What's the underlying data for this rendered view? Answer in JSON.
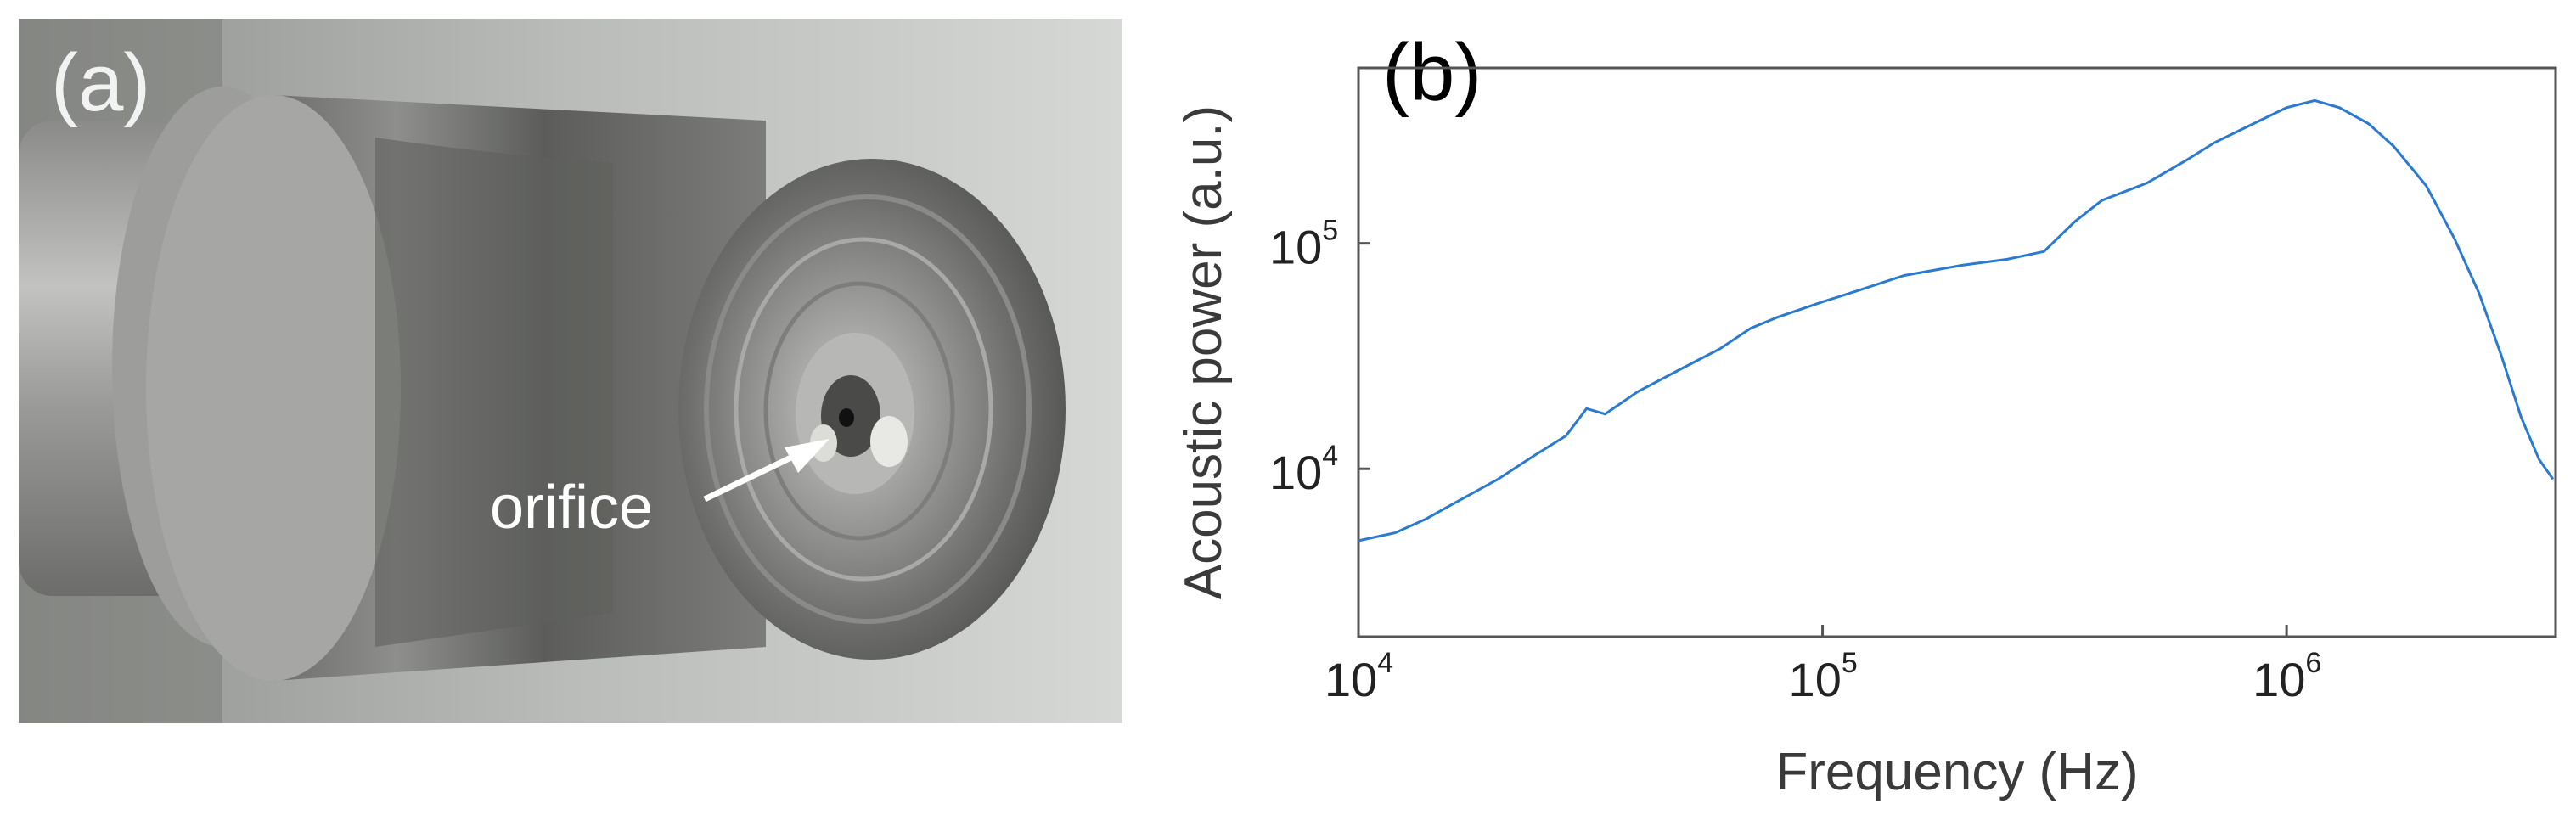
{
  "photo_panel": {
    "label": "(a)",
    "annotation": "orifice"
  },
  "chart_data": {
    "type": "line",
    "label": "(b)",
    "title": "",
    "xlabel": "Frequency (Hz)",
    "ylabel": "Acoustic power (a.u.)",
    "xscale": "log",
    "yscale": "log",
    "xlim": [
      10000,
      3800000
    ],
    "ylim": [
      1800,
      600000
    ],
    "grid": false,
    "x_ticks": [
      {
        "base": "10",
        "exp": "4",
        "value": 10000
      },
      {
        "base": "10",
        "exp": "5",
        "value": 100000
      },
      {
        "base": "10",
        "exp": "6",
        "value": 1000000
      }
    ],
    "y_ticks": [
      {
        "base": "10",
        "exp": "4",
        "value": 10000
      },
      {
        "base": "10",
        "exp": "5",
        "value": 100000
      }
    ],
    "series": [
      {
        "color": "#2a7ad2",
        "x": [
          10000,
          12000,
          14000,
          16000,
          20000,
          24000,
          28000,
          31000,
          34000,
          40000,
          50000,
          60000,
          70000,
          80000,
          100000,
          120000,
          150000,
          200000,
          250000,
          300000,
          350000,
          400000,
          500000,
          600000,
          700000,
          800000,
          900000,
          1000000,
          1150000,
          1300000,
          1500000,
          1700000,
          2000000,
          2300000,
          2600000,
          2900000,
          3200000,
          3500000,
          3750000
        ],
        "y": [
          4800,
          5200,
          6000,
          7000,
          9000,
          11500,
          14000,
          18500,
          17500,
          22000,
          28000,
          34000,
          42000,
          47000,
          55000,
          62000,
          72000,
          80000,
          85000,
          92000,
          125000,
          155000,
          185000,
          230000,
          280000,
          320000,
          360000,
          400000,
          430000,
          400000,
          340000,
          270000,
          180000,
          105000,
          60000,
          32000,
          17000,
          11000,
          9000
        ]
      }
    ]
  }
}
